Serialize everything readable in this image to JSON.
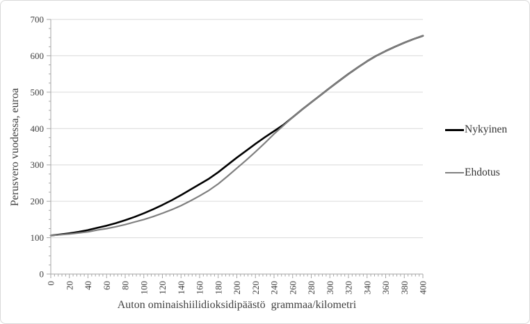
{
  "chart": {
    "y_axis_title": "Perusvero vuodessa, euroa",
    "x_axis_title": "Auton ominaishiilidioksidipäästö  grammaa/kilometri",
    "legend": [
      {
        "label": "Nykyinen",
        "color": "#000000",
        "thickness": 3
      },
      {
        "label": "Ehdotus",
        "color": "#7f7f7f",
        "thickness": 2
      }
    ]
  },
  "chart_data": {
    "type": "line",
    "title": "",
    "xlabel": "Auton ominaishiilidioksidipäästö  grammaa/kilometri",
    "ylabel": "Perusvero vuodessa, euroa",
    "xlim": [
      0,
      400
    ],
    "ylim": [
      0,
      700
    ],
    "x_tick_step": 20,
    "y_tick_step": 100,
    "x_minor_step": 4,
    "y_minor_step": 25,
    "grid": "horizontal",
    "legend_position": "right",
    "colors": {
      "gridline": "#d9d9d9",
      "axis": "#a6a6a6",
      "text": "#404040"
    },
    "x": [
      0,
      10,
      20,
      30,
      40,
      50,
      60,
      70,
      80,
      90,
      100,
      110,
      120,
      130,
      140,
      150,
      160,
      170,
      180,
      190,
      200,
      210,
      220,
      230,
      240,
      250,
      260,
      270,
      280,
      290,
      300,
      310,
      320,
      330,
      340,
      350,
      360,
      370,
      380,
      390,
      400
    ],
    "series": [
      {
        "name": "Nykyinen",
        "color": "#000000",
        "width": 2.6,
        "values": [
          106,
          109,
          112,
          116,
          121,
          127,
          133,
          140,
          148,
          157,
          167,
          178,
          190,
          203,
          217,
          232,
          247,
          262,
          280,
          300,
          320,
          339,
          358,
          376,
          393,
          410,
          431,
          452,
          472,
          492,
          512,
          531,
          550,
          568,
          585,
          600,
          613,
          625,
          636,
          646,
          655
        ]
      },
      {
        "name": "Ehdotus",
        "color": "#7f7f7f",
        "width": 2.2,
        "values": [
          106,
          108,
          110,
          113,
          116,
          121,
          125,
          130,
          136,
          143,
          150,
          158,
          167,
          177,
          188,
          201,
          215,
          230,
          248,
          269,
          291,
          313,
          336,
          360,
          385,
          408,
          431,
          452,
          472,
          492,
          512,
          531,
          550,
          568,
          585,
          600,
          613,
          625,
          636,
          646,
          655
        ]
      }
    ]
  }
}
